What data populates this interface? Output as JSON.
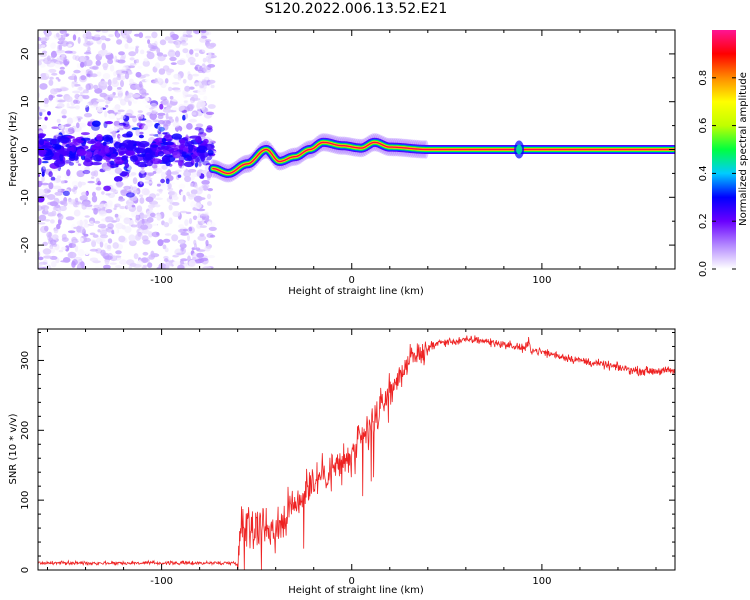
{
  "title": "S120.2022.006.13.52.E21",
  "chart_data": [
    {
      "type": "heatmap",
      "xlabel": "Height of straight line (km)",
      "ylabel": "Frequency (Hz)",
      "xlim": [
        -165,
        170
      ],
      "ylim": [
        -25,
        25
      ],
      "xticks": [
        -100,
        0,
        100
      ],
      "yticks": [
        -20,
        -10,
        0,
        10,
        20
      ],
      "colorbar": {
        "label": "Normalized spectral amplitude",
        "range": [
          0,
          1
        ],
        "ticks": [
          "0.0",
          "0.2",
          "0.4",
          "0.6",
          "0.8"
        ],
        "colors": [
          "#ffffff",
          "#b388ff",
          "#6a00ff",
          "#0000ff",
          "#00ccff",
          "#00ff40",
          "#c0ff00",
          "#ffff00",
          "#ff8c00",
          "#ff0000",
          "#ff1493"
        ]
      },
      "noise_region_x": [
        -165,
        -73
      ],
      "ridge": [
        {
          "x": -73,
          "y": -4.0
        },
        {
          "x": -65,
          "y": -5.0
        },
        {
          "x": -55,
          "y": -3.0
        },
        {
          "x": -45,
          "y": 0.0
        },
        {
          "x": -38,
          "y": -2.5
        },
        {
          "x": -30,
          "y": -1.5
        },
        {
          "x": -22,
          "y": 0.0
        },
        {
          "x": -15,
          "y": 1.5
        },
        {
          "x": -5,
          "y": 0.8
        },
        {
          "x": 5,
          "y": 0.3
        },
        {
          "x": 12,
          "y": 1.5
        },
        {
          "x": 20,
          "y": 0.5
        },
        {
          "x": 40,
          "y": 0.0
        },
        {
          "x": 88,
          "y": 0.0
        },
        {
          "x": 170,
          "y": 0.0
        }
      ]
    },
    {
      "type": "line",
      "xlabel": "Height of straight line (km)",
      "ylabel": "SNR (10 * v/v)",
      "xlim": [
        -165,
        170
      ],
      "ylim": [
        0,
        345
      ],
      "xticks": [
        -100,
        0,
        100
      ],
      "yticks": [
        0,
        100,
        200,
        300
      ],
      "color": "#ee2222",
      "trend": [
        {
          "x": -165,
          "y": 10
        },
        {
          "x": -60,
          "y": 10
        },
        {
          "x": -58,
          "y": 70
        },
        {
          "x": -40,
          "y": 60
        },
        {
          "x": -20,
          "y": 130
        },
        {
          "x": 0,
          "y": 160
        },
        {
          "x": 15,
          "y": 230
        },
        {
          "x": 30,
          "y": 300
        },
        {
          "x": 45,
          "y": 325
        },
        {
          "x": 65,
          "y": 330
        },
        {
          "x": 90,
          "y": 318
        },
        {
          "x": 120,
          "y": 300
        },
        {
          "x": 150,
          "y": 285
        },
        {
          "x": 170,
          "y": 285
        }
      ]
    }
  ]
}
